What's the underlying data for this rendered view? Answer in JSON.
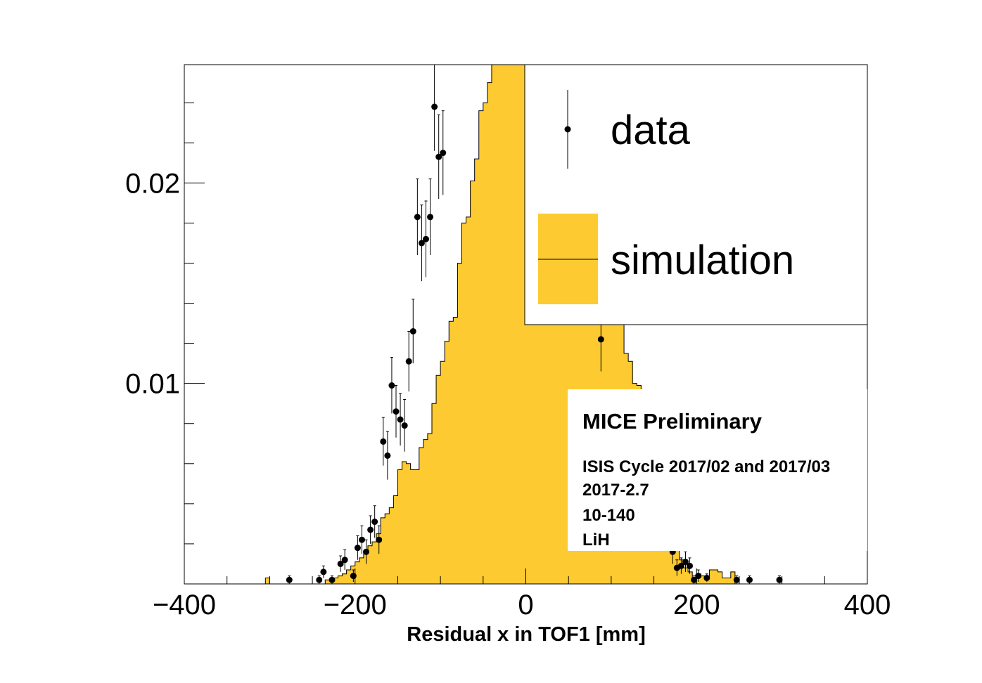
{
  "chart_data": {
    "type": "histogram",
    "xlabel": "Residual x in TOF1 [mm]",
    "ylabel": "",
    "xlim": [
      -400,
      400
    ],
    "ylim": [
      0,
      0.0259
    ],
    "x_ticks": [
      -400,
      -200,
      0,
      200,
      400
    ],
    "x_tick_labels": [
      "−400",
      "−200",
      "0",
      "200",
      "400"
    ],
    "y_ticks": [
      0.01,
      0.02
    ],
    "y_tick_labels": [
      "0.01",
      "0.02"
    ],
    "colors": {
      "simulation_fill": "#fdca31",
      "line": "#000000",
      "marker": "#000000"
    },
    "legend": {
      "position": "top-right",
      "entries": [
        {
          "label": "data",
          "style": "marker-errorbar"
        },
        {
          "label": "simulation",
          "style": "filled-histogram"
        }
      ]
    },
    "annotation": {
      "title": "MICE Preliminary",
      "lines": [
        "ISIS Cycle 2017/02 and 2017/03",
        "2017-2.7",
        "10-140",
        "LiH"
      ]
    },
    "simulation": {
      "bin_width": 5,
      "edges_start": -305,
      "values": [
        0.0003,
        0.0,
        0.0,
        0.0,
        0.0,
        0.0,
        0.0,
        0.0,
        0.0,
        0.0,
        0.0,
        0.0,
        0.0,
        0.0,
        0.0002,
        0.0002,
        0.0003,
        0.0004,
        0.0005,
        0.0007,
        0.0009,
        0.0011,
        0.0013,
        0.0016,
        0.0019,
        0.0021,
        0.0025,
        0.0033,
        0.0035,
        0.0038,
        0.0044,
        0.0057,
        0.0061,
        0.006,
        0.0057,
        0.0057,
        0.0068,
        0.0072,
        0.0075,
        0.009,
        0.0104,
        0.0111,
        0.0121,
        0.0131,
        0.0133,
        0.016,
        0.018,
        0.0183,
        0.0201,
        0.0212,
        0.0236,
        0.024,
        0.025,
        0.028,
        0.028,
        0.028,
        0.028,
        0.028,
        0.028,
        0.028,
        0.028,
        0.028,
        0.028,
        0.028,
        0.028,
        0.028,
        0.028,
        0.028,
        0.028,
        0.028,
        0.028,
        0.028,
        0.028,
        0.028,
        0.028,
        0.028,
        0.028,
        0.028,
        0.028,
        0.028,
        0.028,
        0.028,
        0.0155,
        0.0132,
        0.0115,
        0.0111,
        0.01,
        0.0099,
        0.008,
        0.007,
        0.006,
        0.005,
        0.004,
        0.0032,
        0.0026,
        0.0022,
        0.0017,
        0.0012,
        0.0008,
        0.0006,
        0.0003,
        0.0005,
        0.0004,
        0.0003,
        0.0007,
        0.0007,
        0.0006,
        0.0003,
        0.0003,
        0.0006
      ]
    },
    "data_points": [
      {
        "x": -277,
        "y": 0.0002,
        "err": 0.0002
      },
      {
        "x": -242,
        "y": 0.0002,
        "err": 0.0002
      },
      {
        "x": -237,
        "y": 0.0006,
        "err": 0.0003
      },
      {
        "x": -227,
        "y": 0.0002,
        "err": 0.0002
      },
      {
        "x": -217,
        "y": 0.001,
        "err": 0.0004
      },
      {
        "x": -212,
        "y": 0.0012,
        "err": 0.0005
      },
      {
        "x": -202,
        "y": 0.0004,
        "err": 0.0003
      },
      {
        "x": -197,
        "y": 0.0018,
        "err": 0.0006
      },
      {
        "x": -192,
        "y": 0.0022,
        "err": 0.0007
      },
      {
        "x": -187,
        "y": 0.0016,
        "err": 0.0006
      },
      {
        "x": -182,
        "y": 0.0027,
        "err": 0.0007
      },
      {
        "x": -177,
        "y": 0.0031,
        "err": 0.0008
      },
      {
        "x": -172,
        "y": 0.0022,
        "err": 0.0007
      },
      {
        "x": -167,
        "y": 0.0071,
        "err": 0.0012
      },
      {
        "x": -162,
        "y": 0.0064,
        "err": 0.0012
      },
      {
        "x": -157,
        "y": 0.0099,
        "err": 0.0014
      },
      {
        "x": -152,
        "y": 0.0086,
        "err": 0.0013
      },
      {
        "x": -147,
        "y": 0.0082,
        "err": 0.0013
      },
      {
        "x": -142,
        "y": 0.0079,
        "err": 0.0013
      },
      {
        "x": -137,
        "y": 0.0111,
        "err": 0.0015
      },
      {
        "x": -132,
        "y": 0.0126,
        "err": 0.0016
      },
      {
        "x": -127,
        "y": 0.0183,
        "err": 0.0019
      },
      {
        "x": -122,
        "y": 0.017,
        "err": 0.0019
      },
      {
        "x": -117,
        "y": 0.0172,
        "err": 0.0019
      },
      {
        "x": -112,
        "y": 0.0183,
        "err": 0.0019
      },
      {
        "x": -107,
        "y": 0.0238,
        "err": 0.0022
      },
      {
        "x": -102,
        "y": 0.0213,
        "err": 0.0021
      },
      {
        "x": -97,
        "y": 0.0215,
        "err": 0.0021
      },
      {
        "x": 88,
        "y": 0.0122,
        "err": 0.0016
      },
      {
        "x": 172,
        "y": 0.0016,
        "err": 0.0006
      },
      {
        "x": 177,
        "y": 0.0008,
        "err": 0.0004
      },
      {
        "x": 182,
        "y": 0.0009,
        "err": 0.0004
      },
      {
        "x": 187,
        "y": 0.0011,
        "err": 0.0005
      },
      {
        "x": 192,
        "y": 0.0009,
        "err": 0.0004
      },
      {
        "x": 197,
        "y": 0.0002,
        "err": 0.0002
      },
      {
        "x": 202,
        "y": 0.0004,
        "err": 0.0003
      },
      {
        "x": 212,
        "y": 0.0003,
        "err": 0.0002
      },
      {
        "x": 247,
        "y": 0.0002,
        "err": 0.0002
      },
      {
        "x": 262,
        "y": 0.0002,
        "err": 0.0002
      },
      {
        "x": 297,
        "y": 0.0002,
        "err": 0.0002
      }
    ]
  }
}
